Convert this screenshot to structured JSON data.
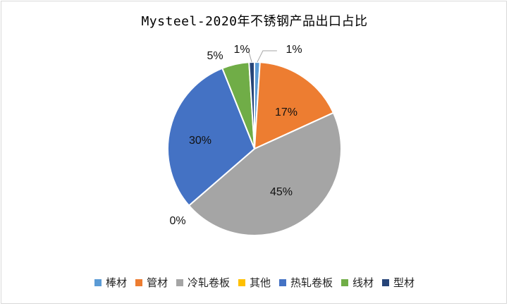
{
  "chart_data": {
    "type": "pie",
    "title": "Mysteel-2020年不锈钢产品出口占比",
    "categories": [
      "棒材",
      "管材",
      "冷轧卷板",
      "其他",
      "热轧卷板",
      "线材",
      "型材"
    ],
    "values": [
      1,
      17,
      45,
      0,
      30,
      5,
      1
    ],
    "labels": [
      "1%",
      "17%",
      "45%",
      "0%",
      "30%",
      "5%",
      "1%"
    ],
    "colors": [
      "#5B9BD5",
      "#ED7D31",
      "#A5A5A5",
      "#FFC000",
      "#4472C4",
      "#70AD47",
      "#264478"
    ],
    "legend_position": "bottom"
  }
}
